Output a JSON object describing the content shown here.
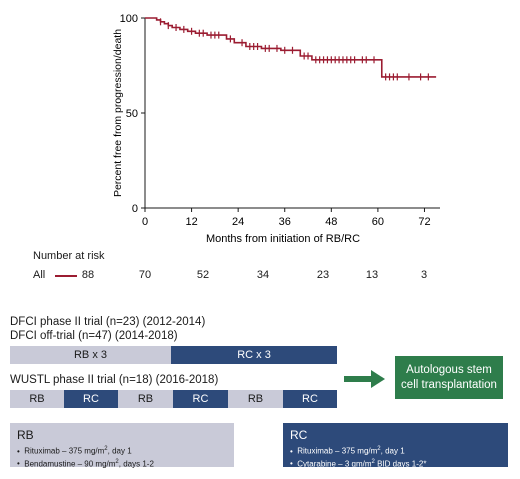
{
  "chart_data": {
    "type": "line",
    "ylabel": "Percent free from progression/death",
    "xlabel": "Months from initiation of RB/RC",
    "x_ticks": [
      0,
      12,
      24,
      36,
      48,
      60,
      72
    ],
    "y_ticks": [
      0,
      50,
      100
    ],
    "xlim": [
      0,
      76
    ],
    "ylim": [
      0,
      100
    ],
    "series": [
      {
        "step_points": [
          [
            0,
            100
          ],
          [
            2,
            100
          ],
          [
            3,
            99
          ],
          [
            4,
            98
          ],
          [
            5,
            97
          ],
          [
            6,
            96
          ],
          [
            7,
            95
          ],
          [
            9,
            94
          ],
          [
            11,
            93
          ],
          [
            13,
            92
          ],
          [
            16,
            91
          ],
          [
            20,
            91
          ],
          [
            21,
            89
          ],
          [
            23,
            87
          ],
          [
            26,
            85
          ],
          [
            30,
            84
          ],
          [
            35,
            83
          ],
          [
            40,
            80
          ],
          [
            43,
            78
          ],
          [
            55,
            78
          ],
          [
            60,
            78
          ],
          [
            61,
            69
          ],
          [
            75,
            69
          ]
        ],
        "censor_x": [
          4,
          6,
          8,
          10,
          12,
          14,
          15,
          17,
          18,
          19,
          22,
          25,
          27,
          28,
          29,
          31,
          32,
          34,
          36,
          38,
          41,
          42,
          44,
          45,
          46,
          47,
          48,
          49,
          50,
          51,
          52,
          53,
          54,
          56,
          57,
          59,
          62,
          63,
          64,
          65,
          68,
          71,
          73
        ],
        "color": "#9b1c31"
      }
    ]
  },
  "risk_table": {
    "title": "Number at risk",
    "group_label": "All",
    "values": [
      "88",
      "70",
      "52",
      "34",
      "23",
      "13",
      "3"
    ]
  },
  "dfci_phase2": "DFCI phase II trial (n=23) (2012-2014)",
  "dfci_offtrial": "DFCI off-trial (n=47) (2014-2018)",
  "dfci_bar": [
    "RB x 3",
    "RC x 3"
  ],
  "wustl_label": "WUSTL phase II trial (n=18) (2016-2018)",
  "wustl_bar": [
    "RB",
    "RC",
    "RB",
    "RC",
    "RB",
    "RC"
  ],
  "asct": {
    "line1": "Autologous stem",
    "line2": "cell transplantation"
  },
  "rb_box": {
    "title": "RB",
    "item1": {
      "text": "Rituximab – 375 mg/m",
      "sup": "2",
      "tail": ", day 1"
    },
    "item2": {
      "text": "Bendamustine – 90 mg/m",
      "sup": "2",
      "tail": ", days 1-2"
    }
  },
  "rc_box": {
    "title": "RC",
    "item1": {
      "text": "Rituximab – 375 mg/m",
      "sup": "2",
      "tail": ", day 1"
    },
    "item2": {
      "text": "Cytarabine – 3 gm/m",
      "sup": "2",
      "tail": " BID days 1-2*"
    }
  },
  "colors": {
    "curve": "#9b1c31",
    "rb": "#c9cad8",
    "rc": "#2d4a7a",
    "asct": "#2e7d4b"
  }
}
